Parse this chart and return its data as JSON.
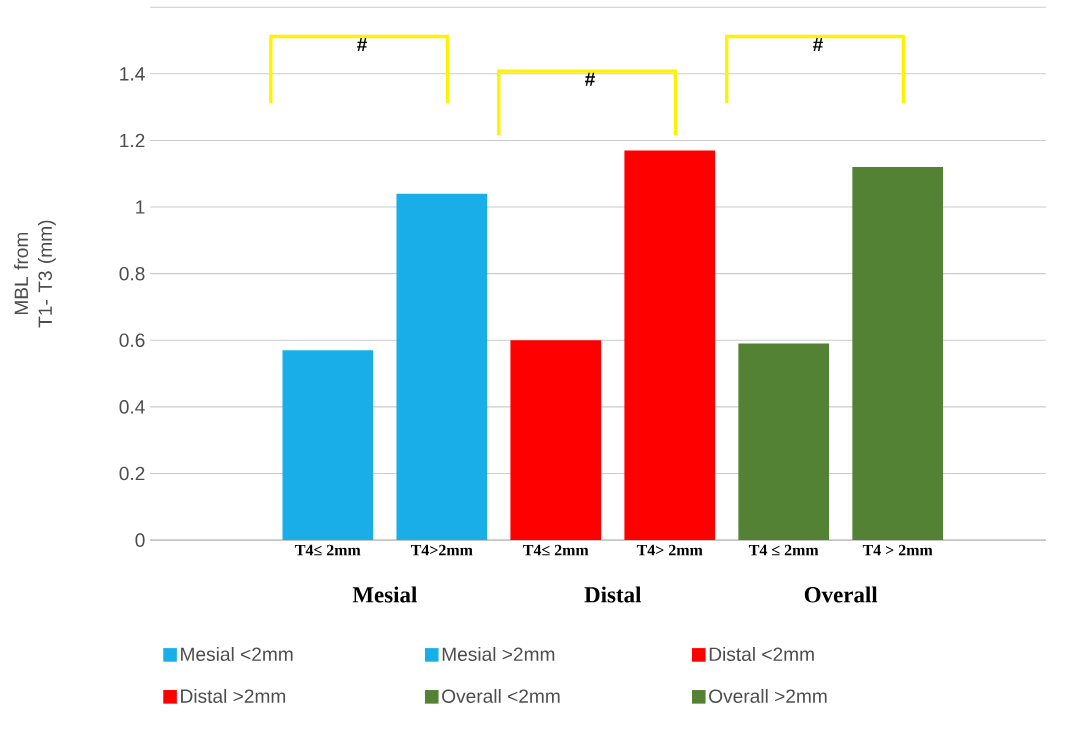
{
  "chart_data": {
    "type": "bar",
    "categories": [
      "T4≤ 2mm",
      "T4>2mm",
      "T4≤ 2mm",
      "T4> 2mm",
      "T4 ≤ 2mm",
      "T4 > 2mm"
    ],
    "ylabel": "MBL from  T1- T3 (mm)",
    "series": [
      {
        "name": "Mesial <2mm",
        "color": "#1aaee8",
        "values": [
          0.57,
          null,
          null,
          null,
          null,
          null
        ]
      },
      {
        "name": "Mesial >2mm",
        "color": "#1aaee8",
        "values": [
          null,
          1.04,
          null,
          null,
          null,
          null
        ]
      },
      {
        "name": "Distal <2mm",
        "color": "#ff0000",
        "values": [
          null,
          null,
          0.6,
          null,
          null,
          null
        ]
      },
      {
        "name": "Distal >2mm",
        "color": "#ff0000",
        "values": [
          null,
          null,
          null,
          1.17,
          null,
          null
        ]
      },
      {
        "name": "Overall  <2mm",
        "color": "#548235",
        "values": [
          null,
          null,
          null,
          null,
          0.59,
          null
        ]
      },
      {
        "name": "Overall  >2mm",
        "color": "#548235",
        "values": [
          null,
          null,
          null,
          null,
          null,
          1.12
        ]
      }
    ],
    "ylim": [
      0,
      1.6
    ],
    "yticks": [
      0,
      0.2,
      0.4,
      0.6,
      0.8,
      1,
      1.2,
      1.4,
      {
        "value": 1.6,
        "label": null
      }
    ],
    "grid": "y",
    "legend": "bottom",
    "annotations": [
      "Mesial",
      "Distal",
      "Overall",
      "#",
      "#",
      "#"
    ]
  }
}
